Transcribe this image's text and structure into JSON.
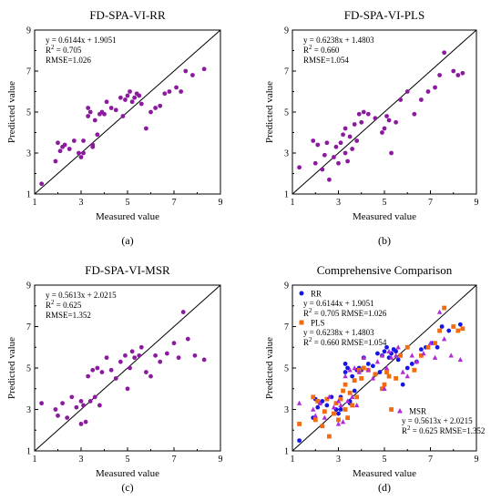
{
  "chart_data": [
    {
      "type": "scatter",
      "title": "FD-SPA-VI-RR",
      "xlabel": "Measured value",
      "ylabel": "Predicted value",
      "xlim": [
        1,
        9
      ],
      "ylim": [
        1,
        9
      ],
      "xticks": [
        "1",
        "3",
        "5",
        "7",
        "9"
      ],
      "yticks": [
        "1",
        "3",
        "5",
        "7",
        "9"
      ],
      "stats": [
        "y = 0.6144x + 1.9051",
        "R2 = 0.705",
        "RMSE=1.026"
      ],
      "caption": "(a)",
      "series": [
        {
          "color": "#8b1a9e",
          "x": [
            1.3,
            1.9,
            2.0,
            2.1,
            2.2,
            2.3,
            2.5,
            2.7,
            2.9,
            3.0,
            3.1,
            3.1,
            3.3,
            3.3,
            3.4,
            3.5,
            3.5,
            3.6,
            3.7,
            3.8,
            3.9,
            4.0,
            4.1,
            4.3,
            4.5,
            4.7,
            4.8,
            4.9,
            5.0,
            5.1,
            5.2,
            5.3,
            5.4,
            5.5,
            5.6,
            5.8,
            6.0,
            6.2,
            6.4,
            6.6,
            6.8,
            7.1,
            7.3,
            7.5,
            7.8,
            8.3
          ],
          "y": [
            1.5,
            2.6,
            3.5,
            3.1,
            3.3,
            3.4,
            3.2,
            3.6,
            3.0,
            2.8,
            3.6,
            3.0,
            5.2,
            4.8,
            5.0,
            3.3,
            3.4,
            4.6,
            3.9,
            4.9,
            5.0,
            4.9,
            5.5,
            5.2,
            5.1,
            5.7,
            4.8,
            5.6,
            5.8,
            6.0,
            5.5,
            5.7,
            5.9,
            5.8,
            5.4,
            4.2,
            5.0,
            5.2,
            5.3,
            5.9,
            6.0,
            6.2,
            6.0,
            7.0,
            6.8,
            7.1
          ]
        }
      ]
    },
    {
      "type": "scatter",
      "title": "FD-SPA-VI-PLS",
      "xlabel": "Measured value",
      "ylabel": "Predicted value",
      "xlim": [
        1,
        9
      ],
      "ylim": [
        1,
        9
      ],
      "xticks": [
        "1",
        "3",
        "5",
        "7",
        "9"
      ],
      "yticks": [
        "1",
        "3",
        "5",
        "7",
        "9"
      ],
      "stats": [
        "y = 0.6238x + 1.4803",
        "R2 = 0.660",
        "RMSE=1.054"
      ],
      "caption": "(b)",
      "series": [
        {
          "color": "#8b1a9e",
          "x": [
            1.3,
            1.9,
            2.0,
            2.1,
            2.3,
            2.4,
            2.5,
            2.6,
            2.8,
            2.9,
            3.0,
            3.1,
            3.2,
            3.3,
            3.3,
            3.4,
            3.5,
            3.6,
            3.7,
            3.8,
            3.9,
            4.0,
            4.1,
            4.3,
            4.6,
            4.9,
            5.0,
            5.1,
            5.2,
            5.3,
            5.5,
            5.7,
            6.0,
            6.3,
            6.6,
            6.9,
            7.2,
            7.4,
            7.6,
            8.0,
            8.2,
            8.4
          ],
          "y": [
            2.3,
            3.6,
            2.5,
            3.4,
            2.2,
            2.9,
            3.5,
            1.7,
            2.8,
            3.3,
            2.5,
            3.5,
            3.9,
            4.2,
            3.0,
            2.6,
            3.8,
            3.2,
            4.4,
            3.6,
            4.9,
            4.5,
            5.0,
            4.9,
            4.7,
            4.0,
            4.2,
            4.8,
            4.6,
            3.0,
            4.5,
            5.6,
            6.0,
            4.9,
            5.6,
            6.0,
            6.2,
            6.8,
            7.9,
            7.0,
            6.8,
            6.9
          ]
        }
      ]
    },
    {
      "type": "scatter",
      "title": "FD-SPA-VI-MSR",
      "xlabel": "Measured value",
      "ylabel": "Predicted value",
      "xlim": [
        1,
        9
      ],
      "ylim": [
        1,
        9
      ],
      "xticks": [
        "1",
        "3",
        "5",
        "7",
        "9"
      ],
      "yticks": [
        "1",
        "3",
        "5",
        "7",
        "9"
      ],
      "stats": [
        "y = 0.5613x + 2.0215",
        "R2 = 0.625",
        "RMSE=1.352"
      ],
      "caption": "(c)",
      "series": [
        {
          "color": "#8b1a9e",
          "x": [
            1.3,
            1.9,
            2.0,
            2.2,
            2.4,
            2.6,
            2.8,
            3.0,
            3.0,
            3.1,
            3.2,
            3.3,
            3.4,
            3.5,
            3.6,
            3.7,
            3.8,
            3.9,
            4.1,
            4.3,
            4.5,
            4.7,
            4.9,
            5.0,
            5.1,
            5.2,
            5.3,
            5.5,
            5.6,
            5.8,
            6.0,
            6.2,
            6.4,
            6.7,
            7.0,
            7.2,
            7.4,
            7.6,
            7.9,
            8.3
          ],
          "y": [
            3.3,
            3.0,
            2.7,
            3.3,
            2.6,
            3.6,
            3.1,
            2.3,
            3.4,
            3.2,
            2.4,
            4.6,
            3.4,
            4.9,
            3.6,
            5.0,
            3.2,
            4.8,
            5.5,
            4.9,
            4.5,
            5.3,
            5.6,
            4.0,
            5.0,
            5.8,
            5.5,
            5.6,
            6.0,
            4.8,
            4.6,
            5.6,
            5.3,
            5.7,
            6.2,
            5.5,
            7.7,
            6.4,
            5.6,
            5.4
          ]
        }
      ]
    },
    {
      "type": "scatter",
      "title": "Comprehensive Comparison",
      "xlabel": "Measured value",
      "ylabel": "Predicted value",
      "xlim": [
        1,
        9
      ],
      "ylim": [
        1,
        9
      ],
      "xticks": [
        "1",
        "3",
        "5",
        "7",
        "9"
      ],
      "yticks": [
        "1",
        "3",
        "5",
        "7",
        "9"
      ],
      "caption": "(d)",
      "series": [
        {
          "name": "RR",
          "marker": "circle",
          "color": "#1515e6",
          "stats": [
            "y = 0.6144x + 1.9051",
            "R2 = 0.705  RMSE=1.026"
          ],
          "x": [
            1.3,
            1.9,
            2.0,
            2.1,
            2.2,
            2.3,
            2.5,
            2.7,
            2.9,
            3.0,
            3.1,
            3.1,
            3.3,
            3.3,
            3.4,
            3.5,
            3.5,
            3.6,
            3.7,
            3.8,
            3.9,
            4.0,
            4.1,
            4.3,
            4.5,
            4.7,
            4.8,
            4.9,
            5.0,
            5.1,
            5.2,
            5.3,
            5.4,
            5.5,
            5.6,
            5.8,
            6.0,
            6.2,
            6.4,
            6.6,
            6.8,
            7.1,
            7.3,
            7.5,
            7.8,
            8.3
          ],
          "y": [
            1.5,
            2.6,
            3.5,
            3.1,
            3.3,
            3.4,
            3.2,
            3.6,
            3.0,
            2.8,
            3.6,
            3.0,
            5.2,
            4.8,
            5.0,
            3.3,
            3.4,
            4.6,
            3.9,
            4.9,
            5.0,
            4.9,
            5.5,
            5.2,
            5.1,
            5.7,
            4.8,
            5.6,
            5.8,
            6.0,
            5.5,
            5.7,
            5.9,
            5.8,
            5.4,
            4.2,
            5.0,
            5.2,
            5.3,
            5.9,
            6.0,
            6.2,
            6.0,
            7.0,
            6.8,
            7.1
          ]
        },
        {
          "name": "PLS",
          "marker": "square",
          "color": "#f26b0f",
          "stats": [
            "y = 0.6238x + 1.4803",
            "R2 = 0.660  RMSE=1.054"
          ],
          "x": [
            1.3,
            1.9,
            2.0,
            2.1,
            2.3,
            2.4,
            2.5,
            2.6,
            2.8,
            2.9,
            3.0,
            3.1,
            3.2,
            3.3,
            3.3,
            3.4,
            3.5,
            3.6,
            3.7,
            3.8,
            3.9,
            4.0,
            4.1,
            4.3,
            4.6,
            4.9,
            5.0,
            5.1,
            5.2,
            5.3,
            5.5,
            5.7,
            6.0,
            6.3,
            6.6,
            6.9,
            7.2,
            7.4,
            7.6,
            8.0,
            8.2,
            8.4
          ],
          "y": [
            2.3,
            3.6,
            2.5,
            3.4,
            2.2,
            2.9,
            3.5,
            1.7,
            2.8,
            3.3,
            2.5,
            3.5,
            3.9,
            4.2,
            3.0,
            2.6,
            3.8,
            3.2,
            4.4,
            3.6,
            4.9,
            4.5,
            5.0,
            4.9,
            4.7,
            4.0,
            4.2,
            4.8,
            4.6,
            3.0,
            4.5,
            5.6,
            6.0,
            4.9,
            5.6,
            6.0,
            6.2,
            6.8,
            7.9,
            7.0,
            6.8,
            6.9
          ]
        },
        {
          "name": "MSR",
          "marker": "triangle",
          "color": "#b22cd6",
          "stats": [
            "y = 0.5613x + 2.0215",
            "R2 = 0.625  RMSE=1.352"
          ],
          "x": [
            1.3,
            1.9,
            2.0,
            2.2,
            2.4,
            2.6,
            2.8,
            3.0,
            3.0,
            3.1,
            3.2,
            3.3,
            3.4,
            3.5,
            3.6,
            3.7,
            3.8,
            3.9,
            4.1,
            4.3,
            4.5,
            4.7,
            4.9,
            5.0,
            5.1,
            5.2,
            5.3,
            5.5,
            5.6,
            5.8,
            6.0,
            6.2,
            6.4,
            6.7,
            7.0,
            7.2,
            7.4,
            7.6,
            7.9,
            8.3
          ],
          "y": [
            3.3,
            3.0,
            2.7,
            3.3,
            2.6,
            3.6,
            3.1,
            2.3,
            3.4,
            3.2,
            2.4,
            4.6,
            3.4,
            4.9,
            3.6,
            5.0,
            3.2,
            4.8,
            5.5,
            4.9,
            4.5,
            5.3,
            5.6,
            4.0,
            5.0,
            5.8,
            5.5,
            5.6,
            6.0,
            4.8,
            4.6,
            5.6,
            5.3,
            5.7,
            6.2,
            5.5,
            7.7,
            6.4,
            5.6,
            5.4
          ]
        }
      ]
    }
  ]
}
